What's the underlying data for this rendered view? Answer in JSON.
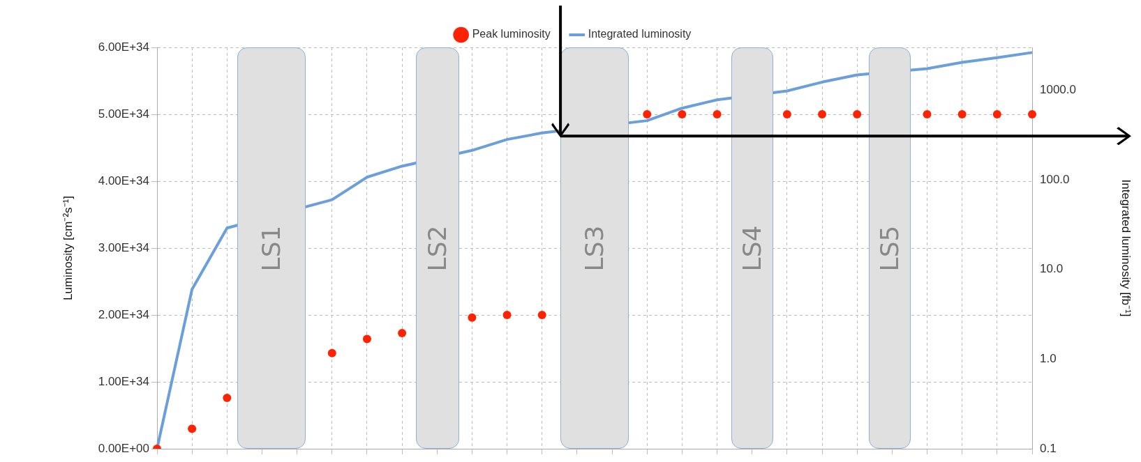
{
  "chart_data": {
    "type": "line",
    "categories": [
      null,
      null,
      null,
      null,
      null,
      null,
      null,
      null,
      null,
      null,
      null,
      null,
      null,
      null,
      null,
      null,
      null,
      null,
      null,
      null,
      null,
      null,
      null,
      null,
      null,
      null
    ],
    "ylabel": "Luminosity [cm⁻²s⁻¹]",
    "y2label": "Integrated luminosity [fb⁻¹]",
    "ylim": [
      0,
      6e+34
    ],
    "yticks": [
      {
        "value": 0,
        "label": "0.00E+00"
      },
      {
        "value": 1e+34,
        "label": "1.00E+34"
      },
      {
        "value": 2e+34,
        "label": "2.00E+34"
      },
      {
        "value": 3e+34,
        "label": "3.00E+34"
      },
      {
        "value": 4e+34,
        "label": "4.00E+34"
      },
      {
        "value": 5e+34,
        "label": "5.00E+34"
      },
      {
        "value": 6e+34,
        "label": "6.00E+34"
      }
    ],
    "y2lim": [
      0.1,
      3000
    ],
    "y2ticks": [
      {
        "value": 0.1,
        "label": "0.1"
      },
      {
        "value": 1,
        "label": "1.0"
      },
      {
        "value": 10,
        "label": "10.0"
      },
      {
        "value": 100,
        "label": "100.0"
      },
      {
        "value": 1000,
        "label": "1000.0"
      }
    ],
    "log": "y2",
    "grid": true,
    "legend": "top",
    "annotations": [
      "LS1",
      "LS2",
      "LS3",
      "LS4",
      "LS5"
    ],
    "series": [
      {
        "name": "Peak luminosity",
        "type": "scatter",
        "color": "#ff2200",
        "values": [
          0,
          3e+33,
          7.6e+33,
          null,
          null,
          1.43e+34,
          1.64e+34,
          1.73e+34,
          null,
          1.96e+34,
          2e+34,
          2e+34,
          null,
          null,
          5e+34,
          5e+34,
          5e+34,
          null,
          5e+34,
          5e+34,
          5e+34,
          null,
          5e+34,
          5e+34,
          5e+34,
          5e+34
        ]
      },
      {
        "name": "Integrated luminosity",
        "type": "line",
        "axis": "y2",
        "color": "#6a9fdc",
        "values": [
          0.1,
          6,
          29,
          null,
          null,
          60,
          107,
          142,
          null,
          213,
          282,
          333,
          null,
          null,
          457,
          630,
          780,
          null,
          980,
          1230,
          1480,
          null,
          1740,
          2040,
          2300,
          2630
        ]
      }
    ]
  }
}
